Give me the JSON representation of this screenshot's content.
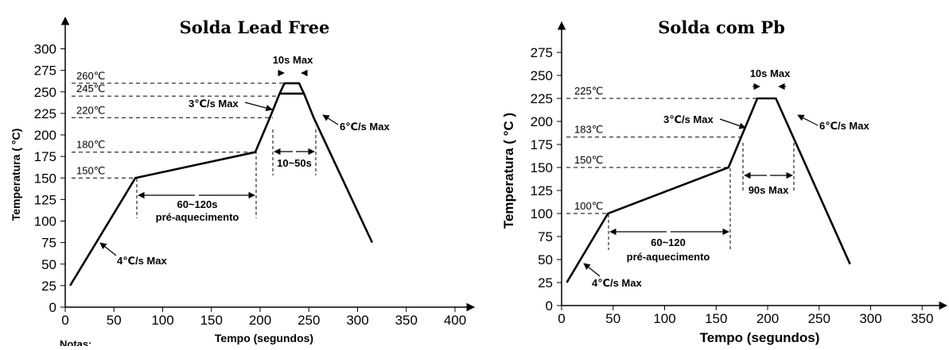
{
  "chart_data": [
    {
      "type": "line",
      "title": "Solda Lead Free",
      "xlabel": "Tempo (segundos)",
      "ylabel": "Temperatura ( °C)",
      "xlim": [
        0,
        400
      ],
      "ylim": [
        0,
        300
      ],
      "xticks": [
        "0",
        "50",
        "100",
        "150",
        "200",
        "250",
        "300",
        "350",
        "400"
      ],
      "yticks": [
        "0",
        "25",
        "50",
        "75",
        "100",
        "125",
        "150",
        "175",
        "200",
        "225",
        "250",
        "275",
        "300"
      ],
      "footer_note": "Notas:",
      "series": [
        {
          "x": [
            5,
            72,
            195,
            210,
            220,
            245,
            255,
            315
          ],
          "y": [
            25,
            150,
            180,
            220,
            248,
            248,
            220,
            75
          ]
        },
        {
          "x": [
            220,
            225,
            240,
            245
          ],
          "y": [
            248,
            260,
            260,
            248
          ]
        }
      ],
      "levels": [
        {
          "label": "260℃",
          "y": 260
        },
        {
          "label": "245℃",
          "y": 245
        },
        {
          "label": "220℃",
          "y": 220
        },
        {
          "label": "180℃",
          "y": 180
        },
        {
          "label": "150℃",
          "y": 150
        }
      ],
      "annotations": {
        "top_max": "10s Max",
        "ramp_up": "3℃/s Max",
        "ramp_down": "6℃/s Max",
        "window": "10~50s",
        "preheat_time": "60~120s",
        "preheat_label": "pré-aquecimento",
        "initial_ramp": "4℃/s Max"
      }
    },
    {
      "type": "line",
      "title": "Solda com Pb",
      "xlabel": "Tempo (segundos)",
      "ylabel": "Temperatura ( °C )",
      "xlim": [
        0,
        350
      ],
      "ylim": [
        0,
        275
      ],
      "xticks": [
        "0",
        "50",
        "100",
        "150",
        "200",
        "250",
        "300",
        "350"
      ],
      "yticks": [
        "0",
        "25",
        "50",
        "75",
        "100",
        "125",
        "150",
        "175",
        "200",
        "225",
        "250",
        "275"
      ],
      "series": [
        {
          "x": [
            5,
            45,
            162,
            190,
            208,
            280
          ],
          "y": [
            25,
            100,
            150,
            225,
            225,
            45
          ]
        }
      ],
      "levels": [
        {
          "label": "225℃",
          "y": 225
        },
        {
          "label": "183℃",
          "y": 183
        },
        {
          "label": "150℃",
          "y": 150
        },
        {
          "label": "100℃",
          "y": 100
        }
      ],
      "annotations": {
        "top_max": "10s Max",
        "ramp_up": "3℃/s Max",
        "ramp_down": "6℃/s Max",
        "window": "90s Max",
        "preheat_time": "60~120",
        "preheat_label": "pré-aquecimento",
        "initial_ramp": "4℃/s Max"
      }
    }
  ]
}
